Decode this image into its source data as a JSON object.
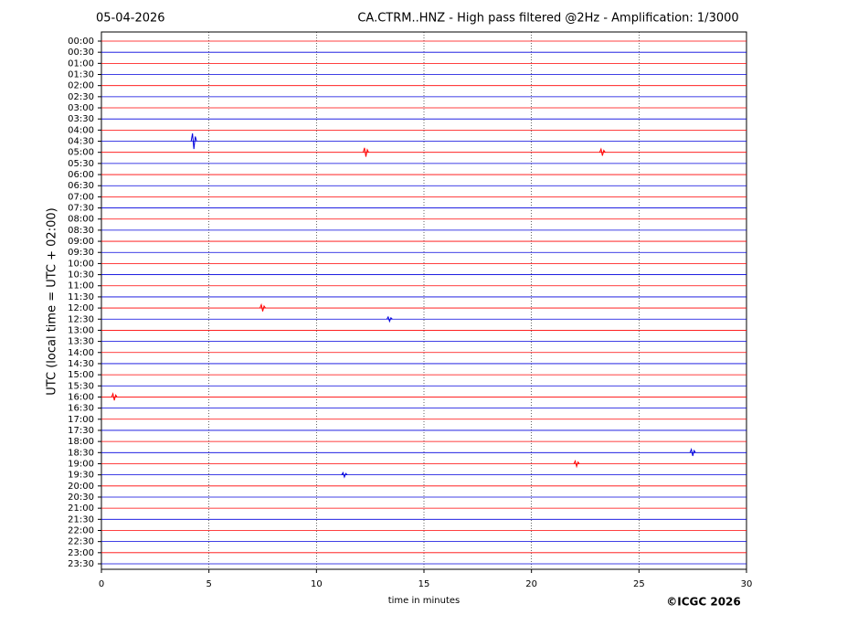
{
  "chart_data": {
    "type": "helicorder",
    "date": "05-04-2026",
    "title": "CA.CTRM..HNZ - High pass filtered @2Hz - Amplification: 1/3000",
    "ylabel": "UTC (local time = UTC + 02:00)",
    "xlabel": "time in minutes",
    "categories": [
      "00:00",
      "00:30",
      "01:00",
      "01:30",
      "02:00",
      "02:30",
      "03:00",
      "03:30",
      "04:00",
      "04:30",
      "05:00",
      "05:30",
      "06:00",
      "06:30",
      "07:00",
      "07:30",
      "08:00",
      "08:30",
      "09:00",
      "09:30",
      "10:00",
      "10:30",
      "11:00",
      "11:30",
      "12:00",
      "12:30",
      "13:00",
      "13:30",
      "14:00",
      "14:30",
      "15:00",
      "15:30",
      "16:00",
      "16:30",
      "17:00",
      "17:30",
      "18:00",
      "18:30",
      "19:00",
      "19:30",
      "20:00",
      "20:30",
      "21:00",
      "21:30",
      "22:00",
      "22:30",
      "23:00",
      "23:30"
    ],
    "trace_colors": [
      "#ff0000",
      "#0000dd"
    ],
    "xlim": [
      0,
      30
    ],
    "xticks": [
      0,
      5,
      10,
      15,
      20,
      25,
      30
    ],
    "grid": true,
    "events": [
      {
        "row": 9,
        "x": 4.3,
        "amplitude": 0.7
      },
      {
        "row": 10,
        "x": 12.3,
        "amplitude": 0.4
      },
      {
        "row": 10,
        "x": 23.3,
        "amplitude": 0.3
      },
      {
        "row": 24,
        "x": 7.5,
        "amplitude": 0.3
      },
      {
        "row": 25,
        "x": 13.4,
        "amplitude": 0.2
      },
      {
        "row": 32,
        "x": 0.6,
        "amplitude": 0.3
      },
      {
        "row": 37,
        "x": 27.5,
        "amplitude": 0.3
      },
      {
        "row": 38,
        "x": 22.1,
        "amplitude": 0.25
      },
      {
        "row": 39,
        "x": 11.3,
        "amplitude": 0.2
      }
    ]
  },
  "footer": "©ICGC 2026"
}
